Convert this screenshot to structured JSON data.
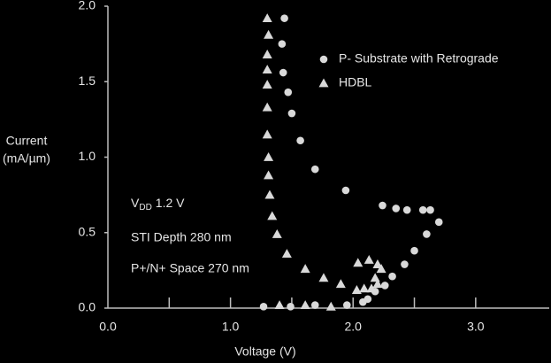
{
  "chart_data": {
    "type": "scatter",
    "x_label": "Voltage (V)",
    "y_label": [
      "Current",
      "(mA/µm)"
    ],
    "xlim": [
      0,
      3.6
    ],
    "ylim": [
      0,
      2.0
    ],
    "xticks": [
      {
        "value": 0,
        "label": "0.0"
      },
      {
        "value": 1,
        "label": "1.0"
      },
      {
        "value": 2,
        "label": "2.0"
      },
      {
        "value": 3,
        "label": "3.0"
      }
    ],
    "xminorticks": [
      0.5,
      1.5,
      2.5
    ],
    "yticks": [
      {
        "value": 0,
        "label": "0.0"
      },
      {
        "value": 0.5,
        "label": "0.5"
      },
      {
        "value": 1,
        "label": "1.0"
      },
      {
        "value": 1.5,
        "label": "1.5"
      },
      {
        "value": 2,
        "label": "2.0"
      }
    ],
    "legend": "top-right",
    "annotations": {
      "vdd": [
        "V",
        "DD",
        "1.2 V"
      ],
      "sti": "STI Depth 280 nm",
      "space": "P+/N+ Space 270 nm"
    },
    "series": [
      {
        "name": "P- Substrate with Retrograde",
        "marker": "circle",
        "color": "#d9d9d9",
        "x": [
          1.44,
          1.42,
          1.43,
          1.47,
          1.5,
          1.57,
          1.69,
          1.94,
          2.24,
          2.35,
          2.44,
          2.57,
          2.63,
          2.7,
          2.6,
          2.5,
          2.42,
          2.32,
          2.26,
          2.18,
          2.12,
          2.08,
          1.95,
          1.69,
          1.49,
          1.27
        ],
        "values": [
          1.92,
          1.75,
          1.56,
          1.43,
          1.29,
          1.11,
          0.92,
          0.78,
          0.68,
          0.66,
          0.65,
          0.65,
          0.65,
          0.57,
          0.49,
          0.38,
          0.29,
          0.21,
          0.15,
          0.11,
          0.06,
          0.04,
          0.02,
          0.02,
          0.01,
          0.01
        ]
      },
      {
        "name": "HDBL",
        "marker": "triangle",
        "color": "#d9d9d9",
        "x": [
          1.3,
          1.31,
          1.3,
          1.3,
          1.3,
          1.3,
          1.3,
          1.31,
          1.31,
          1.32,
          1.34,
          1.38,
          1.46,
          1.61,
          1.76,
          1.9,
          2.04,
          2.13,
          2.2,
          2.23,
          2.18,
          2.2,
          2.15,
          2.09,
          2.03,
          1.82,
          1.61,
          1.4
        ],
        "values": [
          1.92,
          1.81,
          1.68,
          1.58,
          1.48,
          1.33,
          1.15,
          1.0,
          0.88,
          0.75,
          0.61,
          0.49,
          0.36,
          0.26,
          0.2,
          0.16,
          0.3,
          0.32,
          0.29,
          0.26,
          0.2,
          0.16,
          0.13,
          0.13,
          0.12,
          0.01,
          0.02,
          0.02
        ]
      }
    ]
  }
}
